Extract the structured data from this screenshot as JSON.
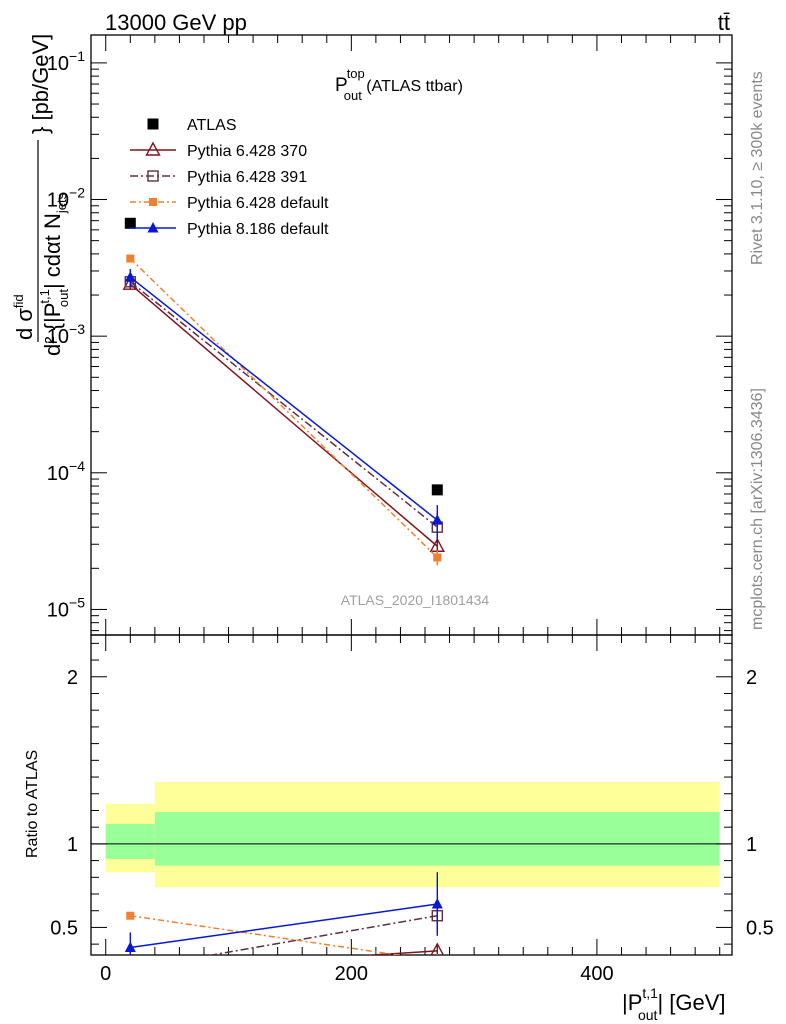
{
  "header": {
    "energy_label": "13000 GeV pp",
    "process_label": "tt̄"
  },
  "side_labels": {
    "rivet": "Rivet 3.1.10, ≥ 300k events",
    "mcplots": "mcplots.cern.ch [arXiv:1306.3436]"
  },
  "analysis_id": "ATLAS_2020_I1801434",
  "title": {
    "main": "P",
    "sup": "top",
    "sub": "out",
    "suffix": " (ATLAS ttbar)"
  },
  "ylabel_upper": "d σ^fid / d²{|P_out^t,1| cdot N_jets} [pb/GeV]",
  "ylabel_upper_parts": {
    "numerator": "d σ",
    "denom_main": "d² {|P",
    "denom_tail": "| cdαt N",
    "denom_sub1": "out",
    "denom_sup1": "t,1",
    "denom_sub2": "jets",
    "unit": "} [pb/GeV]",
    "sup_fid": "fid"
  },
  "ylabel_lower": "Ratio to ATLAS",
  "xlabel_parts": {
    "main": "|P",
    "sup": "t,1",
    "sub": "out",
    "tail": "| [GeV]"
  },
  "colors": {
    "atlas": "#000000",
    "py6_370": "#7f1420",
    "py6_391": "#603040",
    "py6_default": "#f08030",
    "py8_default": "#0818d0",
    "band_outer": "#ffff99",
    "band_inner": "#99ff99"
  },
  "chart_data": [
    {
      "type": "scatter",
      "panel": "main",
      "yscale": "log",
      "xlim": [
        -12,
        510
      ],
      "ylim": [
        6.5e-06,
        0.16
      ],
      "y_ticks": [
        {
          "value": 0.1,
          "label": "10^-1"
        },
        {
          "value": 0.01,
          "label": "10^-2"
        },
        {
          "value": 0.001,
          "label": "10^-3"
        },
        {
          "value": 0.0001,
          "label": "10^-4"
        },
        {
          "value": 1e-05,
          "label": "10^-5"
        }
      ],
      "legend": [
        {
          "label": "ATLAS",
          "series": "atlas"
        },
        {
          "label": "Pythia 6.428 370",
          "series": "py6_370"
        },
        {
          "label": "Pythia 6.428 391",
          "series": "py6_391"
        },
        {
          "label": "Pythia 6.428 default",
          "series": "py6_default"
        },
        {
          "label": "Pythia 8.186 default",
          "series": "py8_default"
        }
      ],
      "series": [
        {
          "name": "ATLAS",
          "key": "atlas",
          "x": [
            20,
            270
          ],
          "y": [
            0.0067,
            7.5e-05
          ]
        },
        {
          "name": "Pythia 6.428 370",
          "key": "py6_370",
          "x": [
            20,
            270
          ],
          "y": [
            0.0024,
            2.9e-05
          ],
          "err": [
            0.0002,
            5e-06
          ]
        },
        {
          "name": "Pythia 6.428 391",
          "key": "py6_391",
          "x": [
            20,
            270
          ],
          "y": [
            0.0025,
            4e-05
          ],
          "err": [
            0.0002,
            6e-06
          ]
        },
        {
          "name": "Pythia 6.428 default",
          "key": "py6_default",
          "x": [
            20,
            270
          ],
          "y": [
            0.0037,
            2.4e-05
          ],
          "err": [
            0.0002,
            3e-06
          ]
        },
        {
          "name": "Pythia 8.186 default",
          "key": "py8_default",
          "x": [
            20,
            270
          ],
          "y": [
            0.0027,
            4.5e-05
          ],
          "err": [
            0.0004,
            1.3e-05
          ]
        }
      ]
    },
    {
      "type": "scatter",
      "panel": "ratio",
      "xlim": [
        -12,
        510
      ],
      "ylim": [
        0.335,
        2.25
      ],
      "x_ticks": [
        0,
        200,
        400
      ],
      "y_ticks": [
        0.5,
        1,
        2
      ],
      "bands": [
        {
          "x0": 0,
          "x1": 40,
          "outer": [
            0.83,
            1.24
          ],
          "inner": [
            0.91,
            1.12
          ]
        },
        {
          "x0": 40,
          "x1": 500,
          "outer": [
            0.74,
            1.37
          ],
          "inner": [
            0.87,
            1.19
          ]
        }
      ],
      "series": [
        {
          "name": "Pythia 6.428 370",
          "key": "py6_370",
          "x": [
            20,
            270
          ],
          "y": [
            0.24,
            0.36
          ],
          "err": [
            0.02,
            0.04
          ]
        },
        {
          "name": "Pythia 6.428 391",
          "key": "py6_391",
          "x": [
            20,
            270
          ],
          "y": [
            0.25,
            0.57
          ],
          "err": [
            0.02,
            0.1
          ]
        },
        {
          "name": "Pythia 6.428 default",
          "key": "py6_default",
          "x": [
            20,
            270
          ],
          "y": [
            0.57,
            0.3
          ],
          "err": [
            0.02,
            0.04
          ]
        },
        {
          "name": "Pythia 8.186 default",
          "key": "py8_default",
          "x": [
            20,
            270
          ],
          "y": [
            0.38,
            0.64
          ],
          "err": [
            0.09,
            0.19
          ]
        }
      ]
    }
  ]
}
